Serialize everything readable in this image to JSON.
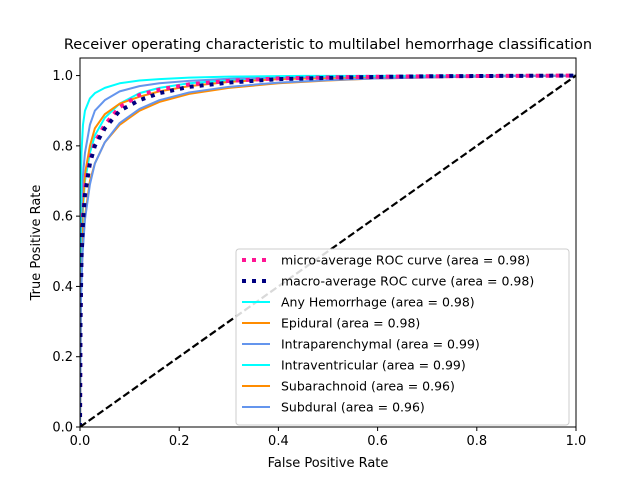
{
  "chart_data": {
    "type": "line",
    "title": "Receiver operating characteristic to multilabel hemorrhage classification",
    "xlabel": "False Positive Rate",
    "ylabel": "True Positive Rate",
    "xlim": [
      0.0,
      1.0
    ],
    "ylim": [
      0.0,
      1.05
    ],
    "xticks": [
      "0.0",
      "0.2",
      "0.4",
      "0.6",
      "0.8",
      "1.0"
    ],
    "yticks": [
      "0.0",
      "0.2",
      "0.4",
      "0.6",
      "0.8",
      "1.0"
    ],
    "legend_position": "lower right",
    "grid": false,
    "series": [
      {
        "name": "micro-average ROC curve (area = 0.98)",
        "color": "#ff1493",
        "style": "dotted",
        "points": [
          [
            0,
            0
          ],
          [
            0.001,
            0.3
          ],
          [
            0.003,
            0.5
          ],
          [
            0.006,
            0.6
          ],
          [
            0.01,
            0.68
          ],
          [
            0.02,
            0.76
          ],
          [
            0.03,
            0.81
          ],
          [
            0.05,
            0.86
          ],
          [
            0.08,
            0.91
          ],
          [
            0.12,
            0.945
          ],
          [
            0.16,
            0.96
          ],
          [
            0.22,
            0.975
          ],
          [
            0.3,
            0.985
          ],
          [
            0.4,
            0.992
          ],
          [
            0.55,
            0.996
          ],
          [
            0.7,
            0.998
          ],
          [
            0.85,
            0.999
          ],
          [
            1.0,
            1.0
          ]
        ]
      },
      {
        "name": "macro-average ROC curve (area = 0.98)",
        "color": "#000080",
        "style": "dotted",
        "points": [
          [
            0,
            0
          ],
          [
            0.001,
            0.3
          ],
          [
            0.003,
            0.48
          ],
          [
            0.006,
            0.58
          ],
          [
            0.01,
            0.66
          ],
          [
            0.02,
            0.75
          ],
          [
            0.03,
            0.8
          ],
          [
            0.05,
            0.85
          ],
          [
            0.08,
            0.9
          ],
          [
            0.12,
            0.93
          ],
          [
            0.16,
            0.95
          ],
          [
            0.22,
            0.968
          ],
          [
            0.3,
            0.98
          ],
          [
            0.4,
            0.99
          ],
          [
            0.55,
            0.995
          ],
          [
            0.7,
            0.998
          ],
          [
            0.85,
            0.999
          ],
          [
            1.0,
            1.0
          ]
        ]
      },
      {
        "name": "Any Hemorrhage (area = 0.98)",
        "color": "#00ffff",
        "style": "solid",
        "points": [
          [
            0,
            0
          ],
          [
            0.001,
            0.35
          ],
          [
            0.003,
            0.52
          ],
          [
            0.006,
            0.62
          ],
          [
            0.01,
            0.7
          ],
          [
            0.02,
            0.78
          ],
          [
            0.03,
            0.83
          ],
          [
            0.05,
            0.88
          ],
          [
            0.08,
            0.92
          ],
          [
            0.12,
            0.95
          ],
          [
            0.16,
            0.965
          ],
          [
            0.22,
            0.978
          ],
          [
            0.3,
            0.987
          ],
          [
            0.4,
            0.993
          ],
          [
            0.55,
            0.997
          ],
          [
            0.7,
            0.999
          ],
          [
            1.0,
            1.0
          ]
        ]
      },
      {
        "name": "Epidural (area = 0.98)",
        "color": "#ff8c00",
        "style": "solid",
        "points": [
          [
            0,
            0
          ],
          [
            0.002,
            0.45
          ],
          [
            0.005,
            0.62
          ],
          [
            0.01,
            0.72
          ],
          [
            0.02,
            0.8
          ],
          [
            0.03,
            0.85
          ],
          [
            0.05,
            0.89
          ],
          [
            0.08,
            0.92
          ],
          [
            0.12,
            0.94
          ],
          [
            0.16,
            0.955
          ],
          [
            0.22,
            0.97
          ],
          [
            0.3,
            0.982
          ],
          [
            0.4,
            0.99
          ],
          [
            0.55,
            0.995
          ],
          [
            0.7,
            0.998
          ],
          [
            1.0,
            1.0
          ]
        ]
      },
      {
        "name": "Intraparenchymal (area = 0.99)",
        "color": "#6495ed",
        "style": "solid",
        "points": [
          [
            0,
            0
          ],
          [
            0.002,
            0.55
          ],
          [
            0.005,
            0.7
          ],
          [
            0.01,
            0.78
          ],
          [
            0.02,
            0.86
          ],
          [
            0.03,
            0.9
          ],
          [
            0.05,
            0.93
          ],
          [
            0.08,
            0.955
          ],
          [
            0.12,
            0.97
          ],
          [
            0.16,
            0.978
          ],
          [
            0.22,
            0.985
          ],
          [
            0.3,
            0.991
          ],
          [
            0.4,
            0.995
          ],
          [
            0.55,
            0.998
          ],
          [
            1.0,
            1.0
          ]
        ]
      },
      {
        "name": "Intraventricular (area = 0.99)",
        "color": "#00ffff",
        "style": "solid",
        "points": [
          [
            0,
            0
          ],
          [
            0.001,
            0.6
          ],
          [
            0.003,
            0.78
          ],
          [
            0.006,
            0.86
          ],
          [
            0.01,
            0.9
          ],
          [
            0.02,
            0.935
          ],
          [
            0.03,
            0.95
          ],
          [
            0.05,
            0.965
          ],
          [
            0.08,
            0.978
          ],
          [
            0.12,
            0.986
          ],
          [
            0.16,
            0.99
          ],
          [
            0.22,
            0.994
          ],
          [
            0.3,
            0.997
          ],
          [
            0.45,
            0.999
          ],
          [
            1.0,
            1.0
          ]
        ]
      },
      {
        "name": "Subarachnoid (area = 0.96)",
        "color": "#ff8c00",
        "style": "solid",
        "points": [
          [
            0,
            0
          ],
          [
            0.002,
            0.38
          ],
          [
            0.005,
            0.5
          ],
          [
            0.01,
            0.6
          ],
          [
            0.02,
            0.7
          ],
          [
            0.03,
            0.75
          ],
          [
            0.05,
            0.81
          ],
          [
            0.08,
            0.86
          ],
          [
            0.12,
            0.9
          ],
          [
            0.16,
            0.925
          ],
          [
            0.22,
            0.948
          ],
          [
            0.3,
            0.965
          ],
          [
            0.4,
            0.978
          ],
          [
            0.5,
            0.986
          ],
          [
            0.6,
            0.992
          ],
          [
            0.75,
            0.996
          ],
          [
            0.9,
            0.999
          ],
          [
            1.0,
            1.0
          ]
        ]
      },
      {
        "name": "Subdural (area = 0.96)",
        "color": "#6495ed",
        "style": "solid",
        "points": [
          [
            0,
            0
          ],
          [
            0.002,
            0.36
          ],
          [
            0.005,
            0.49
          ],
          [
            0.01,
            0.59
          ],
          [
            0.02,
            0.69
          ],
          [
            0.03,
            0.75
          ],
          [
            0.05,
            0.81
          ],
          [
            0.08,
            0.865
          ],
          [
            0.12,
            0.905
          ],
          [
            0.16,
            0.93
          ],
          [
            0.22,
            0.952
          ],
          [
            0.3,
            0.968
          ],
          [
            0.4,
            0.98
          ],
          [
            0.5,
            0.987
          ],
          [
            0.6,
            0.992
          ],
          [
            0.75,
            0.996
          ],
          [
            0.9,
            0.999
          ],
          [
            1.0,
            1.0
          ]
        ]
      },
      {
        "color": "#000000",
        "style": "dashed",
        "points": [
          [
            0,
            0
          ],
          [
            1,
            1
          ]
        ]
      }
    ]
  }
}
